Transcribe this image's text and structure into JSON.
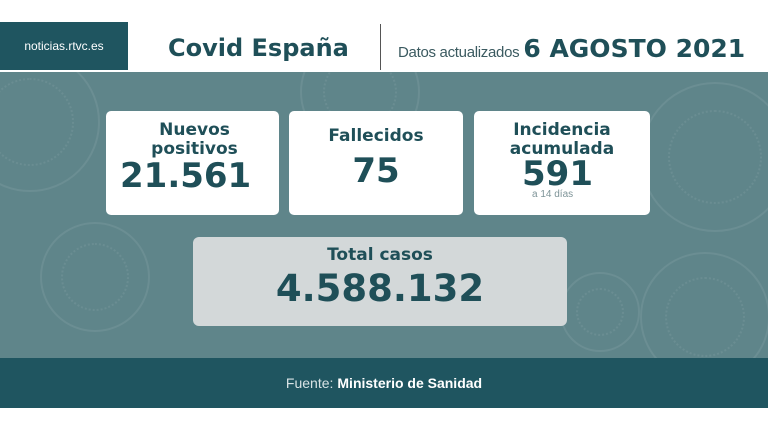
{
  "header": {
    "brand": "noticias.rtvc.es",
    "title": "Covid España",
    "updated_label": "Datos actualizados",
    "updated_date": "6 AGOSTO 2021"
  },
  "stats": {
    "new_cases": {
      "label_line1": "Nuevos",
      "label_line2": "positivos",
      "value": "21.561"
    },
    "deaths": {
      "label": "Fallecidos",
      "value": "75"
    },
    "incidence": {
      "label_line1": "Incidencia",
      "label_line2": "acumulada",
      "value": "591",
      "note": "a 14 días"
    },
    "total": {
      "label": "Total casos",
      "value": "4.588.132"
    }
  },
  "footer": {
    "source_label": "Fuente:",
    "source_value": "Ministerio de Sanidad"
  },
  "colors": {
    "panel": "#5f858a",
    "brand": "#1f5560",
    "text_dark": "#1f4f58"
  }
}
